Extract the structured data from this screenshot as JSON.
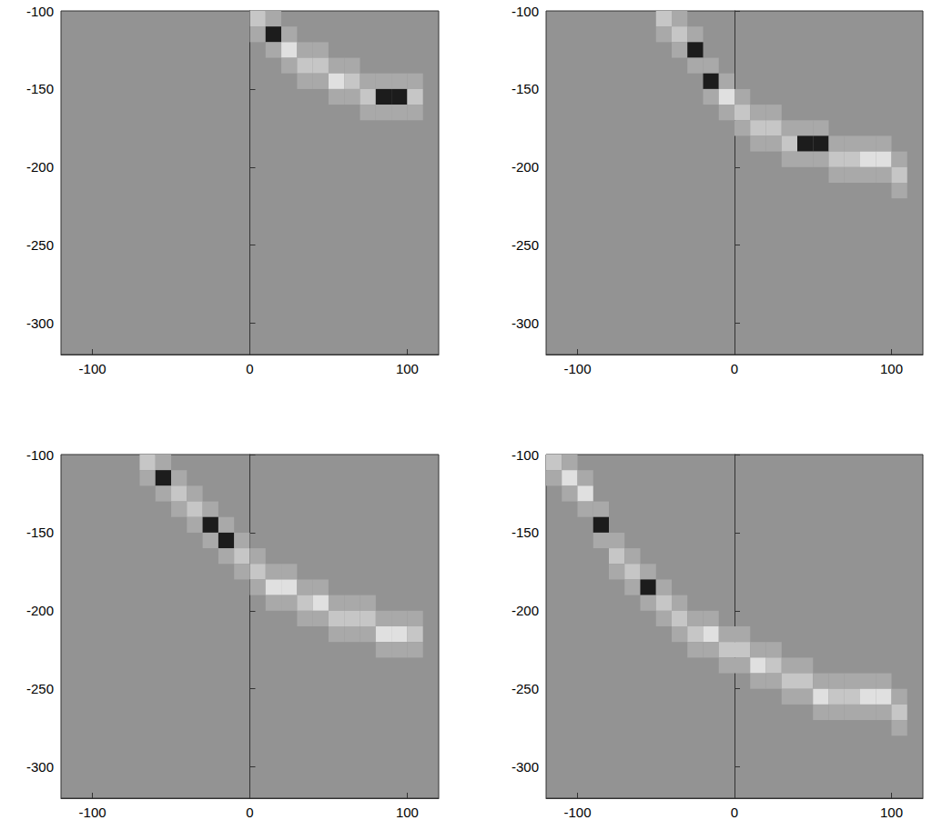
{
  "chart_data": [
    {
      "type": "heatmap",
      "xlim": [
        -120,
        120
      ],
      "ylim": [
        -320,
        -100
      ],
      "xticks": [
        -100,
        0,
        100
      ],
      "yticks": [
        -100,
        -150,
        -200,
        -250,
        -300
      ],
      "bin_size": 10,
      "cells": [
        [
          5,
          -105,
          2
        ],
        [
          5,
          -115,
          1
        ],
        [
          15,
          -105,
          1
        ],
        [
          15,
          -115,
          4
        ],
        [
          15,
          -125,
          1
        ],
        [
          25,
          -115,
          1
        ],
        [
          25,
          -125,
          3
        ],
        [
          25,
          -135,
          1
        ],
        [
          35,
          -125,
          1
        ],
        [
          35,
          -135,
          2
        ],
        [
          35,
          -145,
          1
        ],
        [
          45,
          -125,
          1
        ],
        [
          45,
          -135,
          2
        ],
        [
          45,
          -145,
          1
        ],
        [
          55,
          -135,
          1
        ],
        [
          55,
          -145,
          3
        ],
        [
          55,
          -155,
          1
        ],
        [
          65,
          -135,
          1
        ],
        [
          65,
          -145,
          2
        ],
        [
          65,
          -155,
          1
        ],
        [
          75,
          -145,
          1
        ],
        [
          75,
          -155,
          2
        ],
        [
          75,
          -165,
          1
        ],
        [
          85,
          -145,
          1
        ],
        [
          85,
          -155,
          4
        ],
        [
          85,
          -165,
          1
        ],
        [
          95,
          -145,
          1
        ],
        [
          95,
          -155,
          4
        ],
        [
          95,
          -165,
          1
        ],
        [
          105,
          -145,
          1
        ],
        [
          105,
          -155,
          2
        ],
        [
          105,
          -165,
          1
        ]
      ]
    },
    {
      "type": "heatmap",
      "xlim": [
        -120,
        120
      ],
      "ylim": [
        -320,
        -100
      ],
      "xticks": [
        -100,
        0,
        100
      ],
      "yticks": [
        -100,
        -150,
        -200,
        -250,
        -300
      ],
      "bin_size": 10,
      "cells": [
        [
          -45,
          -105,
          2
        ],
        [
          -45,
          -115,
          1
        ],
        [
          -35,
          -105,
          1
        ],
        [
          -35,
          -115,
          2
        ],
        [
          -35,
          -125,
          1
        ],
        [
          -25,
          -115,
          1
        ],
        [
          -25,
          -125,
          4
        ],
        [
          -25,
          -135,
          1
        ],
        [
          -15,
          -135,
          1
        ],
        [
          -15,
          -145,
          4
        ],
        [
          -15,
          -155,
          1
        ],
        [
          -5,
          -145,
          1
        ],
        [
          -5,
          -155,
          3
        ],
        [
          -5,
          -165,
          1
        ],
        [
          5,
          -155,
          1
        ],
        [
          5,
          -165,
          2
        ],
        [
          5,
          -175,
          1
        ],
        [
          15,
          -165,
          1
        ],
        [
          15,
          -175,
          2
        ],
        [
          15,
          -185,
          1
        ],
        [
          25,
          -165,
          1
        ],
        [
          25,
          -175,
          2
        ],
        [
          25,
          -185,
          1
        ],
        [
          35,
          -175,
          1
        ],
        [
          35,
          -185,
          2
        ],
        [
          35,
          -195,
          1
        ],
        [
          45,
          -175,
          1
        ],
        [
          45,
          -185,
          4
        ],
        [
          45,
          -195,
          1
        ],
        [
          55,
          -175,
          1
        ],
        [
          55,
          -185,
          4
        ],
        [
          55,
          -195,
          1
        ],
        [
          65,
          -185,
          1
        ],
        [
          65,
          -195,
          2
        ],
        [
          65,
          -205,
          1
        ],
        [
          75,
          -185,
          1
        ],
        [
          75,
          -195,
          2
        ],
        [
          75,
          -205,
          1
        ],
        [
          85,
          -185,
          1
        ],
        [
          85,
          -195,
          3
        ],
        [
          85,
          -205,
          1
        ],
        [
          95,
          -185,
          1
        ],
        [
          95,
          -195,
          3
        ],
        [
          95,
          -205,
          1
        ],
        [
          105,
          -195,
          1
        ],
        [
          105,
          -205,
          2
        ],
        [
          105,
          -215,
          1
        ]
      ]
    },
    {
      "type": "heatmap",
      "xlim": [
        -120,
        120
      ],
      "ylim": [
        -320,
        -100
      ],
      "xticks": [
        -100,
        0,
        100
      ],
      "yticks": [
        -100,
        -150,
        -200,
        -250,
        -300
      ],
      "bin_size": 10,
      "cells": [
        [
          -65,
          -105,
          2
        ],
        [
          -65,
          -115,
          1
        ],
        [
          -55,
          -105,
          1
        ],
        [
          -55,
          -115,
          4
        ],
        [
          -55,
          -125,
          1
        ],
        [
          -45,
          -115,
          1
        ],
        [
          -45,
          -125,
          2
        ],
        [
          -45,
          -135,
          1
        ],
        [
          -35,
          -125,
          1
        ],
        [
          -35,
          -135,
          2
        ],
        [
          -35,
          -145,
          1
        ],
        [
          -25,
          -135,
          1
        ],
        [
          -25,
          -145,
          4
        ],
        [
          -25,
          -155,
          1
        ],
        [
          -15,
          -145,
          1
        ],
        [
          -15,
          -155,
          4
        ],
        [
          -15,
          -165,
          1
        ],
        [
          -5,
          -155,
          1
        ],
        [
          -5,
          -165,
          2
        ],
        [
          -5,
          -175,
          1
        ],
        [
          5,
          -165,
          1
        ],
        [
          5,
          -175,
          2
        ],
        [
          5,
          -185,
          1
        ],
        [
          15,
          -175,
          1
        ],
        [
          15,
          -185,
          3
        ],
        [
          15,
          -195,
          1
        ],
        [
          25,
          -175,
          1
        ],
        [
          25,
          -185,
          3
        ],
        [
          25,
          -195,
          1
        ],
        [
          35,
          -185,
          1
        ],
        [
          35,
          -195,
          2
        ],
        [
          35,
          -205,
          1
        ],
        [
          45,
          -185,
          1
        ],
        [
          45,
          -195,
          3
        ],
        [
          45,
          -205,
          1
        ],
        [
          55,
          -195,
          1
        ],
        [
          55,
          -205,
          2
        ],
        [
          55,
          -215,
          1
        ],
        [
          65,
          -195,
          1
        ],
        [
          65,
          -205,
          2
        ],
        [
          65,
          -215,
          1
        ],
        [
          75,
          -195,
          1
        ],
        [
          75,
          -205,
          2
        ],
        [
          75,
          -215,
          1
        ],
        [
          85,
          -205,
          1
        ],
        [
          85,
          -215,
          3
        ],
        [
          85,
          -225,
          1
        ],
        [
          95,
          -205,
          1
        ],
        [
          95,
          -215,
          3
        ],
        [
          95,
          -225,
          1
        ],
        [
          105,
          -205,
          1
        ],
        [
          105,
          -215,
          2
        ],
        [
          105,
          -225,
          1
        ]
      ]
    },
    {
      "type": "heatmap",
      "xlim": [
        -120,
        120
      ],
      "ylim": [
        -320,
        -100
      ],
      "xticks": [
        -100,
        0,
        100
      ],
      "yticks": [
        -100,
        -150,
        -200,
        -250,
        -300
      ],
      "bin_size": 10,
      "cells": [
        [
          -115,
          -105,
          2
        ],
        [
          -115,
          -115,
          1
        ],
        [
          -105,
          -105,
          1
        ],
        [
          -105,
          -115,
          3
        ],
        [
          -105,
          -125,
          1
        ],
        [
          -95,
          -115,
          1
        ],
        [
          -95,
          -125,
          3
        ],
        [
          -95,
          -135,
          1
        ],
        [
          -85,
          -135,
          1
        ],
        [
          -85,
          -145,
          4
        ],
        [
          -85,
          -155,
          1
        ],
        [
          -75,
          -155,
          1
        ],
        [
          -75,
          -165,
          2
        ],
        [
          -75,
          -175,
          1
        ],
        [
          -65,
          -165,
          1
        ],
        [
          -65,
          -175,
          2
        ],
        [
          -65,
          -185,
          1
        ],
        [
          -55,
          -175,
          1
        ],
        [
          -55,
          -185,
          4
        ],
        [
          -55,
          -195,
          1
        ],
        [
          -45,
          -185,
          1
        ],
        [
          -45,
          -195,
          2
        ],
        [
          -45,
          -205,
          1
        ],
        [
          -35,
          -195,
          1
        ],
        [
          -35,
          -205,
          2
        ],
        [
          -35,
          -215,
          1
        ],
        [
          -25,
          -205,
          1
        ],
        [
          -25,
          -215,
          2
        ],
        [
          -25,
          -225,
          1
        ],
        [
          -15,
          -205,
          1
        ],
        [
          -15,
          -215,
          3
        ],
        [
          -15,
          -225,
          1
        ],
        [
          -5,
          -215,
          1
        ],
        [
          -5,
          -225,
          2
        ],
        [
          -5,
          -235,
          1
        ],
        [
          5,
          -215,
          1
        ],
        [
          5,
          -225,
          2
        ],
        [
          5,
          -235,
          1
        ],
        [
          15,
          -225,
          1
        ],
        [
          15,
          -235,
          3
        ],
        [
          15,
          -245,
          1
        ],
        [
          25,
          -225,
          1
        ],
        [
          25,
          -235,
          2
        ],
        [
          25,
          -245,
          1
        ],
        [
          35,
          -235,
          1
        ],
        [
          35,
          -245,
          2
        ],
        [
          35,
          -255,
          1
        ],
        [
          45,
          -235,
          1
        ],
        [
          45,
          -245,
          2
        ],
        [
          45,
          -255,
          1
        ],
        [
          55,
          -245,
          1
        ],
        [
          55,
          -255,
          3
        ],
        [
          55,
          -265,
          1
        ],
        [
          65,
          -245,
          1
        ],
        [
          65,
          -255,
          2
        ],
        [
          65,
          -265,
          1
        ],
        [
          75,
          -245,
          1
        ],
        [
          75,
          -255,
          2
        ],
        [
          75,
          -265,
          1
        ],
        [
          85,
          -245,
          1
        ],
        [
          85,
          -255,
          3
        ],
        [
          85,
          -265,
          1
        ],
        [
          95,
          -245,
          1
        ],
        [
          95,
          -255,
          3
        ],
        [
          95,
          -265,
          1
        ],
        [
          105,
          -255,
          1
        ],
        [
          105,
          -265,
          2
        ],
        [
          105,
          -275,
          1
        ]
      ]
    }
  ]
}
